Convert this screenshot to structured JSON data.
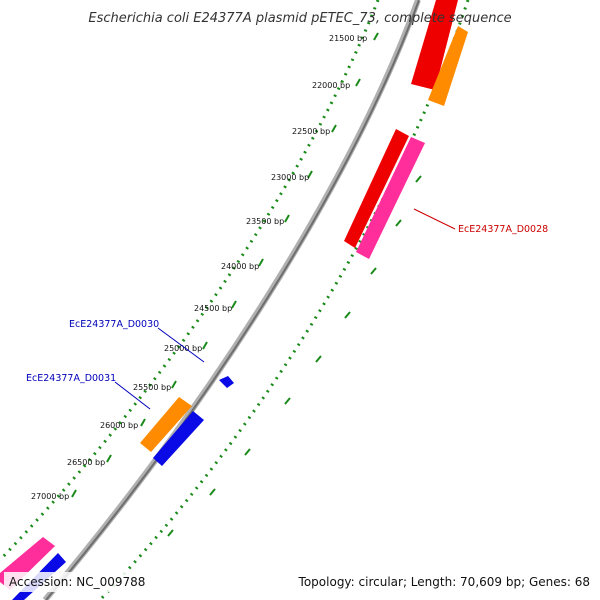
{
  "title": "Escherichia coli E24377A plasmid pETEC_73, complete sequence",
  "accession": "Accession: NC_009788",
  "summary": "Topology: circular; Length: 70,609 bp; Genes: 68",
  "ruler_labels": [
    "21500 bp",
    "22000 bp",
    "22500 bp",
    "23000 bp",
    "23500 bp",
    "24000 bp",
    "24500 bp",
    "25000 bp",
    "25500 bp",
    "26000 bp",
    "26500 bp",
    "27000 bp"
  ],
  "gene_labels": {
    "d0028": "EcE24377A_D0028",
    "d0030": "EcE24377A_D0030",
    "d0031": "EcE24377A_D0031"
  },
  "colors": {
    "backbone": "#8c8c8c",
    "ruler": "#1a8a1a",
    "gene_red": "#ee0000",
    "gene_pink": "#ff2e9a",
    "gene_orange": "#ff8c00",
    "gene_blue": "#0a0ae6",
    "label_red": "#cc0000",
    "label_blue": "#0000bb"
  }
}
